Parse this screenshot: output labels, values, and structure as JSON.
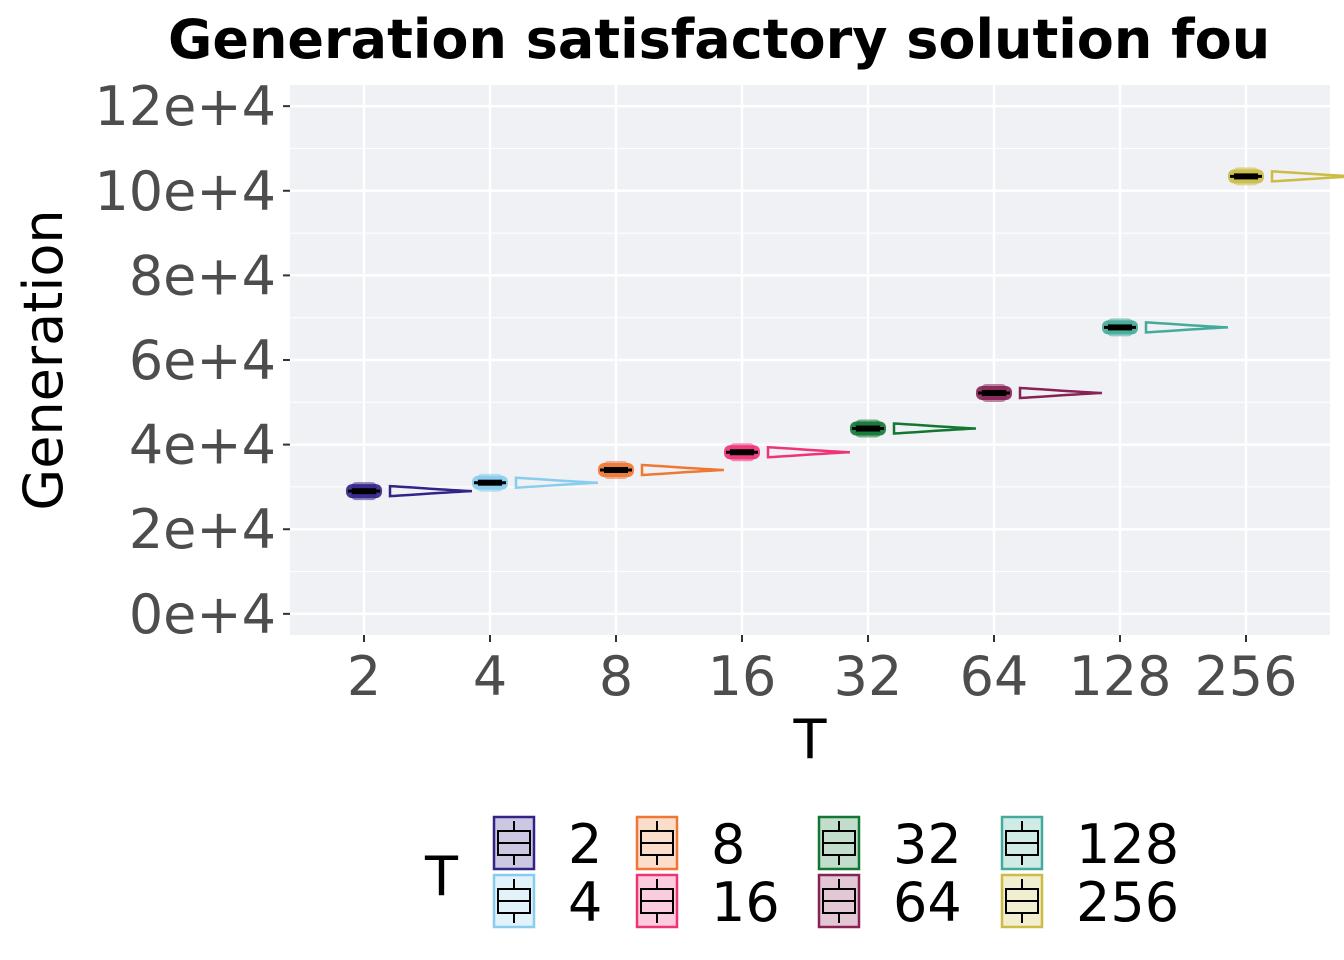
{
  "chart_data": {
    "type": "box",
    "title": "Generation satisfactory solution fou",
    "xlabel": "T",
    "ylabel": "Generation",
    "categories": [
      "2",
      "4",
      "8",
      "16",
      "32",
      "64",
      "128",
      "256"
    ],
    "y_ticks": [
      "0e+4",
      "2e+4",
      "4e+4",
      "6e+4",
      "8e+4",
      "10e+4",
      "12e+4"
    ],
    "ylim": [
      -5000,
      125000
    ],
    "grid": true,
    "legend_title": "T",
    "legend_position": "bottom",
    "series": [
      {
        "label": "2",
        "color": "#332288",
        "shape": "diamond",
        "median": 29000,
        "spread": 1800,
        "violin_tail": 0.65
      },
      {
        "label": "4",
        "color": "#88ccee",
        "shape": "plus",
        "median": 31000,
        "spread": 1800,
        "violin_tail": 0.65
      },
      {
        "label": "8",
        "color": "#ee7733",
        "shape": "circle",
        "median": 34000,
        "spread": 1800,
        "violin_tail": 0.65
      },
      {
        "label": "16",
        "color": "#ee3377",
        "shape": "triangle-up",
        "median": 38200,
        "spread": 1800,
        "violin_tail": 0.65
      },
      {
        "label": "32",
        "color": "#117733",
        "shape": "triangle-down",
        "median": 43800,
        "spread": 1800,
        "violin_tail": 0.65
      },
      {
        "label": "64",
        "color": "#882255",
        "shape": "square",
        "median": 52200,
        "spread": 1800,
        "violin_tail": 0.65
      },
      {
        "label": "128",
        "color": "#44aa99",
        "shape": "cross",
        "median": 67700,
        "spread": 1800,
        "violin_tail": 0.65
      },
      {
        "label": "256",
        "color": "#ccbb44",
        "shape": "dot",
        "median": 103400,
        "spread": 1800,
        "violin_tail": 0.65
      }
    ]
  }
}
